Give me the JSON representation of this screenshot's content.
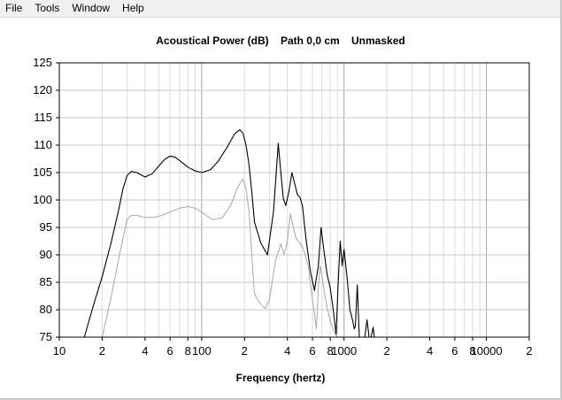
{
  "menu": {
    "items": [
      "File",
      "Tools",
      "Window",
      "Help"
    ]
  },
  "chart_data": {
    "type": "line",
    "title": "Acoustical Power (dB)    Path 0,0 cm    Unmasked",
    "xlabel": "Frequency (hertz)",
    "ylabel": "",
    "xscale": "log",
    "xlim": [
      10,
      20000
    ],
    "ylim": [
      75,
      125
    ],
    "grid": true,
    "y_ticks": [
      75,
      80,
      85,
      90,
      95,
      100,
      105,
      110,
      115,
      120,
      125
    ],
    "x_tick_values": [
      10,
      20,
      40,
      60,
      80,
      100,
      200,
      400,
      600,
      800,
      1000,
      2000,
      4000,
      6000,
      8000,
      10000,
      20000
    ],
    "x_tick_labels": [
      "10",
      "2",
      "4",
      "6",
      "8",
      "100",
      "2",
      "4",
      "6",
      "8",
      "1000",
      "2",
      "4",
      "6",
      "8",
      "10000",
      "2"
    ],
    "series_colors": [
      "#000000",
      "#a8a8a8"
    ],
    "series": [
      {
        "x": [
          15,
          17,
          20,
          23,
          26,
          28,
          30,
          32,
          35,
          40,
          45,
          50,
          55,
          60,
          65,
          70,
          80,
          90,
          100,
          115,
          130,
          150,
          170,
          185,
          195,
          205,
          215,
          225,
          235,
          260,
          290,
          320,
          345,
          360,
          375,
          390,
          410,
          430,
          450,
          470,
          490,
          510,
          540,
          580,
          620,
          660,
          690,
          720,
          760,
          800,
          840,
          880,
          910,
          940,
          970,
          1000,
          1050,
          1100,
          1150,
          1180,
          1200,
          1240,
          1280,
          1330,
          1400,
          1450,
          1500,
          1550,
          1600,
          1630
        ],
        "y": [
          75,
          80,
          86,
          92,
          98,
          102,
          104.5,
          105.2,
          105,
          104.2,
          104.8,
          106.2,
          107.4,
          108,
          107.8,
          107.2,
          106,
          105.3,
          105,
          105.5,
          107,
          109.5,
          112,
          112.8,
          112.2,
          110,
          106.5,
          101.5,
          96,
          92.2,
          90,
          98,
          110.3,
          105,
          100.2,
          99,
          101.5,
          105,
          103,
          101,
          100.5,
          99,
          93,
          87,
          83.5,
          88,
          95,
          91,
          86.5,
          84,
          80,
          75.5,
          85,
          92.5,
          88,
          91,
          86,
          80,
          78,
          76.5,
          77,
          84.5,
          75,
          75,
          75,
          78.2,
          75,
          75,
          76.8,
          75
        ]
      },
      {
        "x": [
          20,
          23,
          26,
          28,
          30,
          32,
          35,
          40,
          45,
          50,
          60,
          70,
          80,
          90,
          100,
          110,
          120,
          140,
          160,
          180,
          195,
          205,
          215,
          225,
          235,
          245,
          260,
          280,
          300,
          330,
          360,
          380,
          400,
          420,
          440,
          460,
          490,
          520,
          560,
          600,
          640,
          660,
          680,
          700,
          730,
          760,
          800,
          850,
          900,
          950
        ],
        "y": [
          75,
          82,
          89,
          93,
          96.5,
          97.2,
          97.2,
          96.8,
          96.8,
          97,
          97.8,
          98.5,
          98.8,
          98.5,
          97.8,
          97,
          96.4,
          96.8,
          99,
          102.5,
          103.8,
          102,
          98,
          90,
          83,
          82,
          81,
          80.2,
          82,
          89,
          92,
          90,
          92.5,
          97.5,
          95,
          93,
          92.2,
          91,
          88,
          82,
          76.5,
          84,
          88,
          86,
          83,
          80.5,
          78,
          76,
          75,
          75
        ]
      }
    ]
  }
}
